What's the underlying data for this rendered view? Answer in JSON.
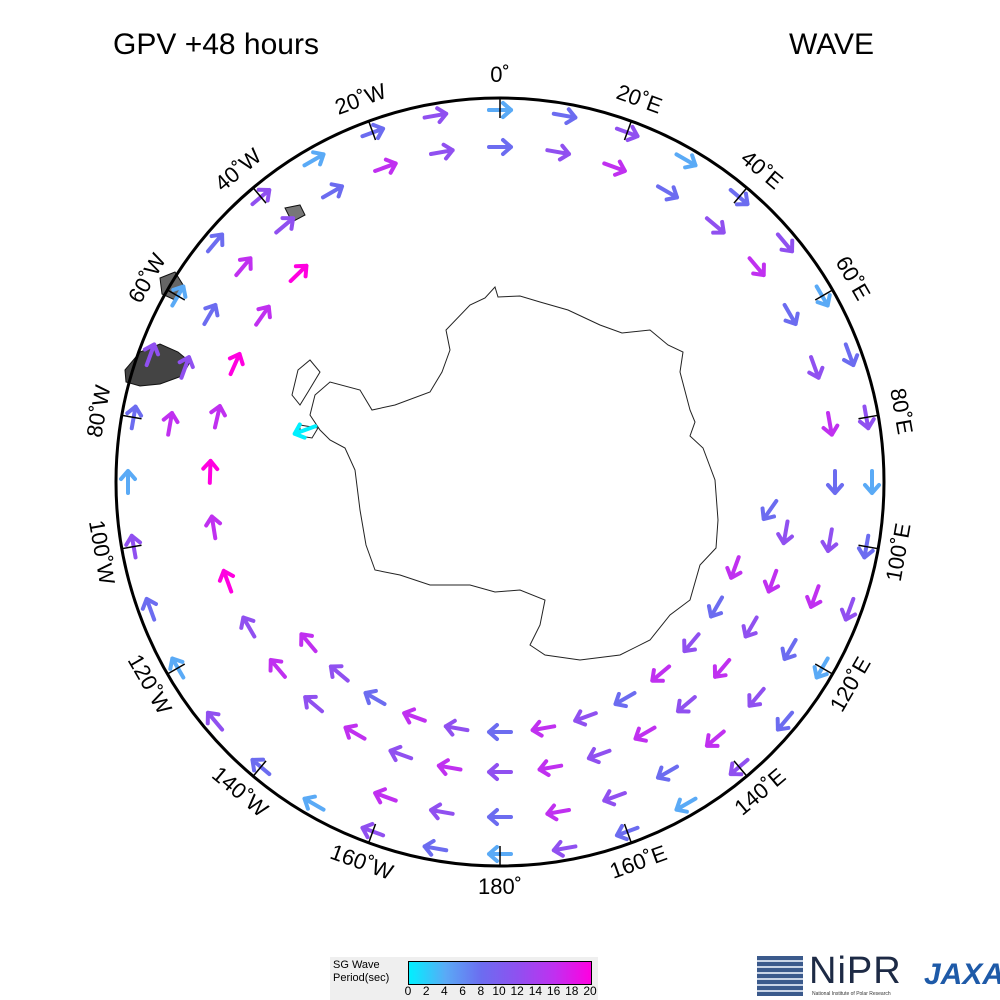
{
  "header": {
    "title_left": "GPV +48 hours",
    "title_right": "WAVE"
  },
  "map": {
    "projection": "south-polar-stereographic",
    "longitude_labels": [
      "0˚",
      "20˚E",
      "40˚E",
      "60˚E",
      "80˚E",
      "100˚E",
      "120˚E",
      "140˚E",
      "160˚E",
      "180˚",
      "160˚W",
      "140˚W",
      "120˚W",
      "100˚W",
      "80˚W",
      "60˚W",
      "40˚W",
      "20˚W"
    ],
    "land_outline_color": "#000000",
    "arrow_outline_color": "#000000"
  },
  "legend": {
    "title": "SG Wave\nPeriod(sec)",
    "tick_labels": [
      "0",
      "2",
      "4",
      "6",
      "8",
      "10",
      "12",
      "14",
      "16",
      "18",
      "20"
    ],
    "colors": [
      "#00f0ff",
      "#5aaaf6",
      "#6c6cf0",
      "#9050f0",
      "#c030f0",
      "#ff00e0"
    ]
  },
  "logos": {
    "nipr_text": "NiPR",
    "nipr_sub": "National Institute of Polar Research",
    "jaxa_text": "JAXA"
  }
}
